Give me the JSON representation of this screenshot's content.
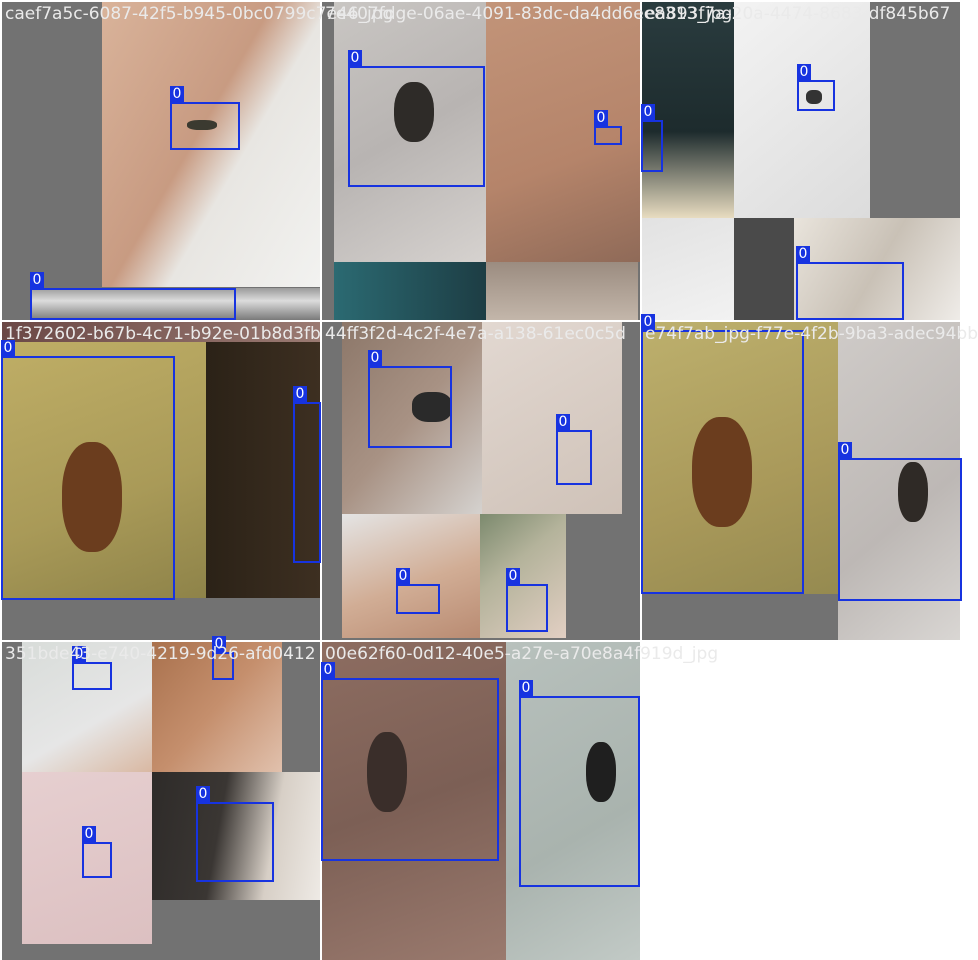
{
  "colors": {
    "box": "#1733e0",
    "pad": "#727272",
    "filename_text": "#eaeaea"
  },
  "class_label": "0",
  "tiles": [
    {
      "filename": "caef7a5c-6087-42f5-b945-0bc0799c7e46_jpg"
    },
    {
      "filename": "7e407fdge-06ae-4091-83dc-da4dd6ee8313_jpg"
    },
    {
      "filename": "ea893f7a-20a-4474-8683-df845b67"
    },
    {
      "filename": "1f372602-b67b-4c71-b92e-01b8d3fb"
    },
    {
      "filename": "44ff3f2d-4c2f-4e7a-a138-61ec0c5d"
    },
    {
      "filename": "e74f7ab_jpg-f77e-4f2b-9ba3-adec94bb"
    },
    {
      "filename": "351bde43-e740-4219-9d26-afd0412"
    },
    {
      "filename": "00e62f60-0d12-40e5-a27e-a70e8a4f919d_jpg"
    }
  ]
}
